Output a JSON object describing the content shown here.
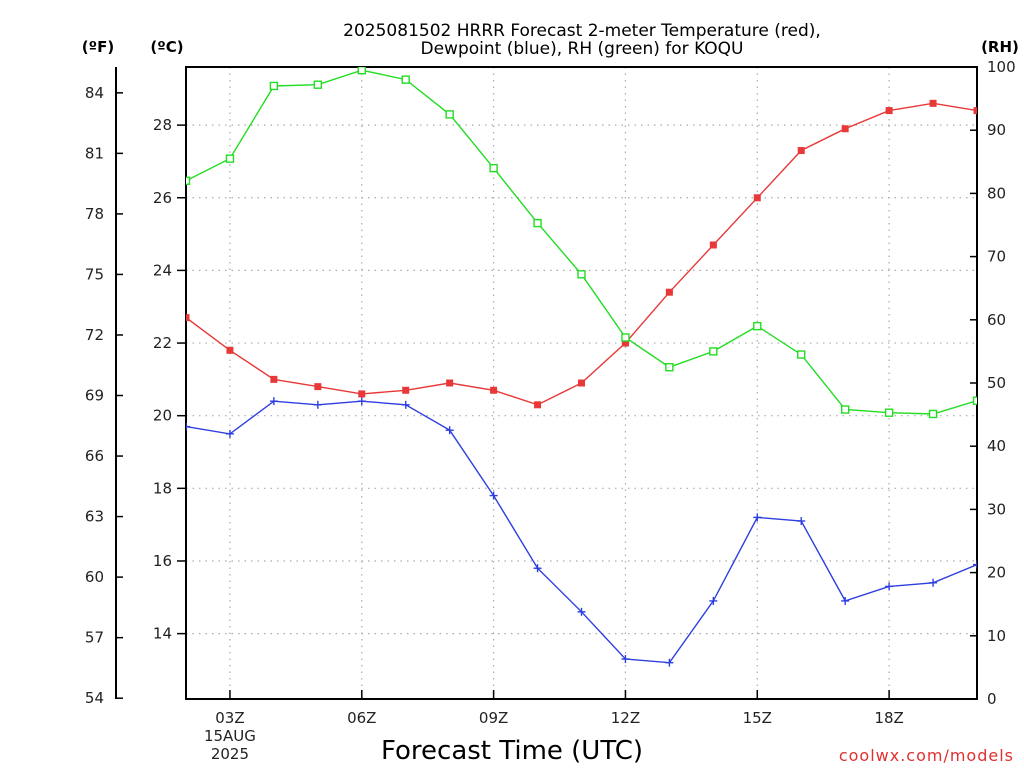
{
  "title_line1": "2025081502 HRRR Forecast 2-meter Temperature (red),",
  "title_line2": "Dewpoint (blue), RH (green) for KOQU",
  "credit": "coolwx.com/models",
  "chart_data": {
    "type": "line",
    "title": "2025081502 HRRR Forecast 2-meter Temperature (red), Dewpoint (blue), RH (green) for KOQU",
    "xlabel": "Forecast Time (UTC)",
    "x": [
      "02Z",
      "03Z",
      "04Z",
      "05Z",
      "06Z",
      "07Z",
      "08Z",
      "09Z",
      "10Z",
      "11Z",
      "12Z",
      "13Z",
      "14Z",
      "15Z",
      "16Z",
      "17Z",
      "18Z",
      "19Z",
      "20Z"
    ],
    "xlim": [
      2,
      20
    ],
    "xticks": [
      {
        "x": 3,
        "label": "03Z",
        "sub1": "15AUG",
        "sub2": "2025"
      },
      {
        "x": 6,
        "label": "06Z"
      },
      {
        "x": 9,
        "label": "09Z"
      },
      {
        "x": 12,
        "label": "12Z"
      },
      {
        "x": 15,
        "label": "15Z"
      },
      {
        "x": 18,
        "label": "18Z"
      }
    ],
    "y_celsius": {
      "unit_label": "(ºC)",
      "range": [
        12.2,
        29.6
      ],
      "ticks": [
        14,
        16,
        18,
        20,
        22,
        24,
        26,
        28
      ]
    },
    "y_fahrenheit": {
      "unit_label": "(ºF)",
      "ticks": [
        54,
        57,
        60,
        63,
        66,
        69,
        72,
        75,
        78,
        81,
        84
      ]
    },
    "y_rh": {
      "unit_label": "(RH)",
      "range": [
        0,
        100
      ],
      "ticks": [
        0,
        10,
        20,
        30,
        40,
        50,
        60,
        70,
        80,
        90,
        100
      ]
    },
    "grid": true,
    "series": [
      {
        "name": "Temperature",
        "axis": "celsius",
        "color": "#e83838",
        "marker": "filled-square",
        "values": [
          22.7,
          21.8,
          21.0,
          20.8,
          20.6,
          20.7,
          20.9,
          20.7,
          20.3,
          20.9,
          22.0,
          23.4,
          24.7,
          26.0,
          27.3,
          27.9,
          28.4,
          28.6,
          28.4
        ]
      },
      {
        "name": "Dewpoint",
        "axis": "celsius",
        "color": "#2e3fe0",
        "marker": "plus",
        "values": [
          19.7,
          19.5,
          20.4,
          20.3,
          20.4,
          20.3,
          19.6,
          17.8,
          15.8,
          14.6,
          13.3,
          13.2,
          14.9,
          17.2,
          17.1,
          14.9,
          15.3,
          15.4,
          15.9
        ]
      },
      {
        "name": "RH",
        "axis": "rh",
        "color": "#22dd22",
        "marker": "open-square",
        "values": [
          82,
          85.5,
          97,
          97.2,
          99.5,
          98,
          92.5,
          84,
          75.3,
          67.2,
          57.2,
          52.5,
          55,
          59,
          54.5,
          45.8,
          45.3,
          45.1,
          47.2
        ]
      }
    ]
  }
}
